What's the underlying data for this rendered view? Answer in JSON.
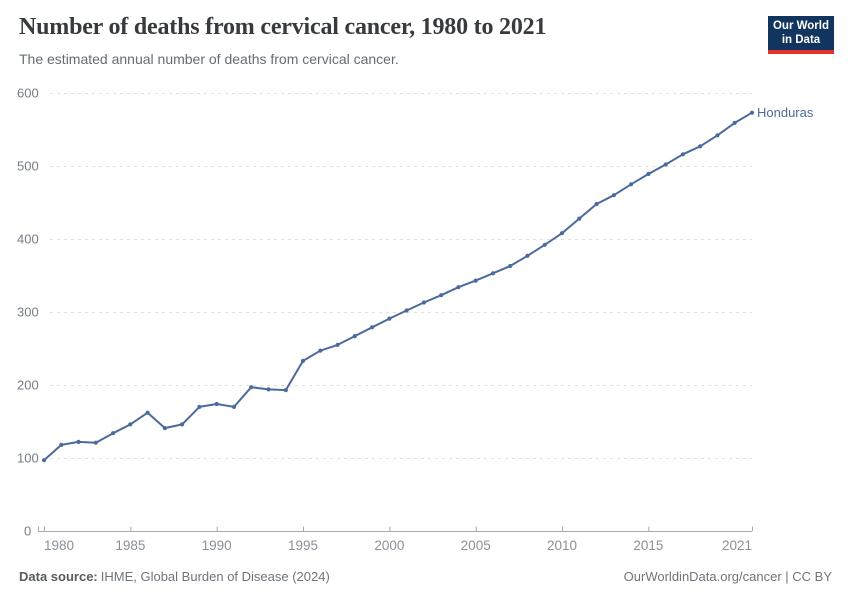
{
  "header": {
    "title": "Number of deaths from cervical cancer, 1980 to 2021",
    "subtitle": "The estimated annual number of deaths from cervical cancer.",
    "logo": {
      "line1": "Our World",
      "line2": "in Data"
    }
  },
  "chart_data": {
    "type": "line",
    "title": "Number of deaths from cervical cancer, 1980 to 2021",
    "xlabel": "",
    "ylabel": "",
    "xlim": [
      1980,
      2021
    ],
    "ylim": [
      0,
      600
    ],
    "grid": true,
    "legend_position": "end-of-line",
    "x_ticks": [
      1980,
      1985,
      1990,
      1995,
      2000,
      2005,
      2010,
      2015,
      2021
    ],
    "y_ticks": [
      0,
      100,
      200,
      300,
      400,
      500,
      600
    ],
    "x": [
      1980,
      1981,
      1982,
      1983,
      1984,
      1985,
      1986,
      1987,
      1988,
      1989,
      1990,
      1991,
      1992,
      1993,
      1994,
      1995,
      1996,
      1997,
      1998,
      1999,
      2000,
      2001,
      2002,
      2003,
      2004,
      2005,
      2006,
      2007,
      2008,
      2009,
      2010,
      2011,
      2012,
      2013,
      2014,
      2015,
      2016,
      2017,
      2018,
      2019,
      2020,
      2021
    ],
    "series": [
      {
        "name": "Honduras",
        "color": "#4C6A9C",
        "values": [
          97,
          118,
          122,
          121,
          134,
          146,
          162,
          141,
          146,
          170,
          174,
          170,
          197,
          194,
          193,
          233,
          247,
          255,
          267,
          279,
          291,
          302,
          313,
          323,
          334,
          343,
          353,
          363,
          377,
          392,
          408,
          428,
          448,
          460,
          475,
          489,
          502,
          516,
          527,
          542,
          559,
          573
        ]
      }
    ]
  },
  "footer": {
    "source_label": "Data source:",
    "source_text": "IHME, Global Burden of Disease (2024)",
    "credit": "OurWorldinData.org/cancer | CC BY"
  },
  "colors": {
    "line": "#4C6A9C",
    "grid": "#dde1e4",
    "axis": "#a5abb0",
    "y_tick_label": "#757d85",
    "x_tick_label": "#8a9197",
    "title": "#383b3d",
    "subtitle": "#646d75",
    "logo_bg": "#12355f",
    "logo_accent": "#e0352b"
  }
}
